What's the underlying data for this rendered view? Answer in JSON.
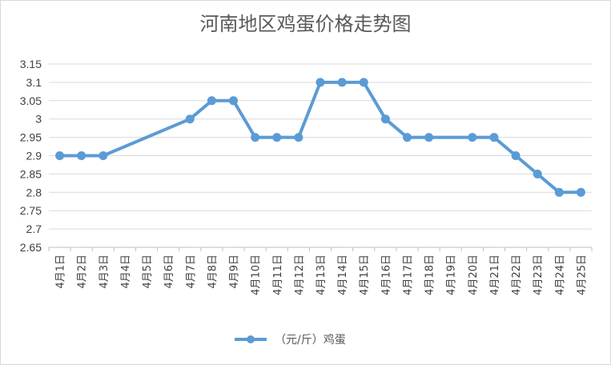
{
  "chart_data": {
    "type": "line",
    "title": "河南地区鸡蛋价格走势图",
    "categories": [
      "4月1日",
      "4月2日",
      "4月3日",
      "4月4日",
      "4月5日",
      "4月6日",
      "4月7日",
      "4月8日",
      "4月9日",
      "4月10日",
      "4月11日",
      "4月12日",
      "4月13日",
      "4月14日",
      "4月15日",
      "4月16日",
      "4月17日",
      "4月18日",
      "4月19日",
      "4月20日",
      "4月21日",
      "4月22日",
      "4月23日",
      "4月24日",
      "4月25日"
    ],
    "series": [
      {
        "name": "（元/斤）鸡蛋",
        "values": [
          2.9,
          2.9,
          2.9,
          null,
          null,
          null,
          3.0,
          3.05,
          3.05,
          2.95,
          2.95,
          2.95,
          3.1,
          3.1,
          3.1,
          3.0,
          2.95,
          2.95,
          null,
          2.95,
          2.95,
          2.9,
          2.85,
          2.8,
          2.8
        ],
        "color": "#5b9bd5"
      }
    ],
    "yticks": [
      "2.65",
      "2.7",
      "2.75",
      "2.8",
      "2.85",
      "2.9",
      "2.95",
      "3",
      "3.05",
      "3.1",
      "3.15"
    ],
    "ylim": [
      2.65,
      3.15
    ],
    "grid": true,
    "legend": "bottom"
  }
}
